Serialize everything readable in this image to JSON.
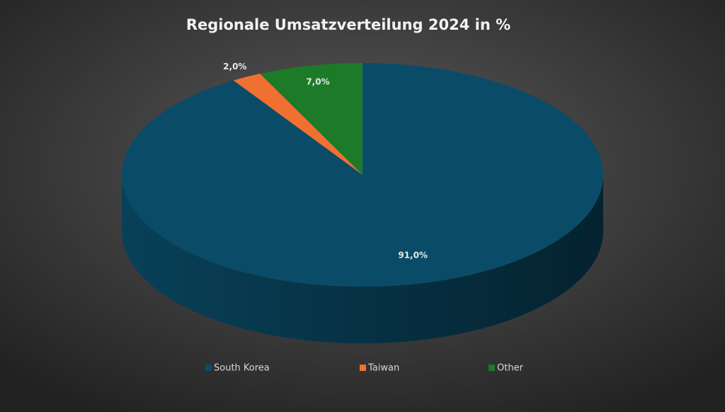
{
  "chart_data": {
    "type": "pie",
    "title": "Regionale Umsatzverteilung 2024 in %",
    "series": [
      {
        "name": "South Korea",
        "color": "#0a4c68"
      },
      {
        "name": "Taiwan",
        "color": "#f07032"
      },
      {
        "name": "Other",
        "color": "#1d7a28"
      }
    ],
    "values": [
      91,
      2,
      7
    ],
    "value_labels": [
      "91,0%",
      "2,0%",
      "7,0%"
    ],
    "legend": "bottom"
  }
}
